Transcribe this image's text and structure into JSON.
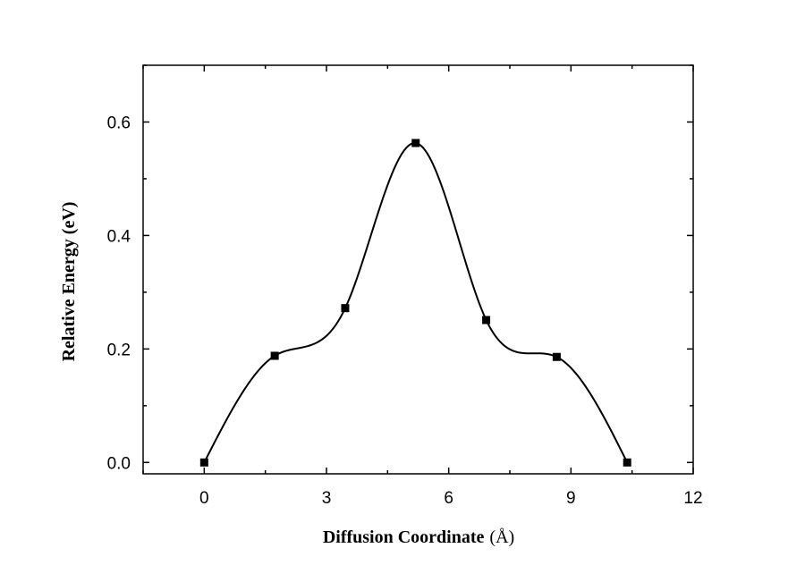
{
  "chart_data": {
    "type": "line",
    "title": "",
    "xlabel": "Diffusion Coordinate",
    "xlabel_unit": "(Å)",
    "ylabel": "Relative Energy (eV)",
    "xlim": [
      -1.5,
      12
    ],
    "ylim": [
      -0.02,
      0.7
    ],
    "x_ticks": [
      0,
      3,
      6,
      9,
      12
    ],
    "x_tick_labels": [
      "0",
      "3",
      "6",
      "9",
      "12"
    ],
    "y_ticks": [
      0.0,
      0.2,
      0.4,
      0.6
    ],
    "y_tick_labels": [
      "0.0",
      "0.2",
      "0.4",
      "0.6"
    ],
    "grid": false,
    "legend": "none",
    "series": [
      {
        "marker": "square",
        "color": "#000000",
        "x": [
          0.0,
          1.73,
          3.46,
          5.19,
          6.92,
          8.65,
          10.38
        ],
        "y": [
          0.0,
          0.188,
          0.272,
          0.563,
          0.251,
          0.186,
          0.0
        ]
      }
    ]
  }
}
